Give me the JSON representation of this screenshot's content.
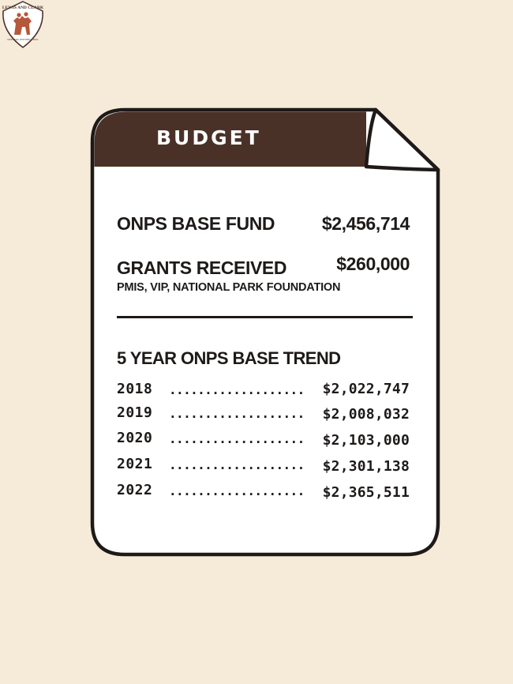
{
  "header": {
    "title": "BUDGET",
    "logo_text_top": "LEWIS AND CLARK",
    "logo_text_bottom": "NATIONAL HISTORIC TRAIL"
  },
  "summary": {
    "base_fund_label": "ONPS BASE FUND",
    "base_fund_value": "$2,456,714",
    "grants_label": "GRANTS RECEIVED",
    "grants_value": "$260,000",
    "grants_sources": "PMIS, VIP, NATIONAL PARK FOUNDATION"
  },
  "trend": {
    "title": "5 YEAR ONPS BASE TREND",
    "dots": "...................",
    "rows": [
      {
        "year": "2018",
        "amount": "$2,022,747"
      },
      {
        "year": "2019",
        "amount": "$2,008,032"
      },
      {
        "year": "2020",
        "amount": "$2,103,000"
      },
      {
        "year": "2021",
        "amount": "$2,301,138"
      },
      {
        "year": "2022",
        "amount": "$2,365,511"
      }
    ]
  },
  "colors": {
    "background": "#f6ead9",
    "header_band": "#4a3128",
    "page": "#ffffff",
    "ink": "#1d1a18",
    "logo_figure": "#b5573a"
  }
}
